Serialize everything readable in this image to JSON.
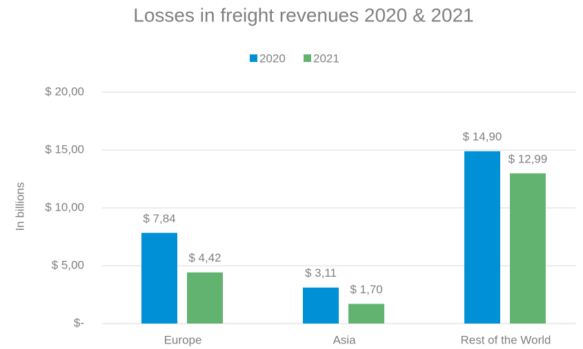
{
  "chart_data": {
    "type": "bar",
    "title": "Losses in freight revenues 2020 & 2021",
    "y_label": "In billions",
    "categories": [
      "Europe",
      "Asia",
      "Rest of the World"
    ],
    "series": [
      {
        "name": "2020",
        "color": "#0090d6",
        "values": [
          7.84,
          3.11,
          14.9
        ],
        "value_labels": [
          "$ 7,84",
          "$ 3,11",
          "$ 14,90"
        ]
      },
      {
        "name": "2021",
        "color": "#62b36f",
        "values": [
          4.42,
          1.7,
          12.99
        ],
        "value_labels": [
          "$ 4,42",
          "$ 1,70",
          "$ 12,99"
        ]
      }
    ],
    "ylim": [
      0,
      20
    ],
    "yticks": [
      {
        "value": 0,
        "label": "$-"
      },
      {
        "value": 5,
        "label": "$ 5,00"
      },
      {
        "value": 10,
        "label": "$ 10,00"
      },
      {
        "value": 15,
        "label": "$ 15,00"
      },
      {
        "value": 20,
        "label": "$ 20,00"
      }
    ],
    "grid": true,
    "legend": "top"
  }
}
